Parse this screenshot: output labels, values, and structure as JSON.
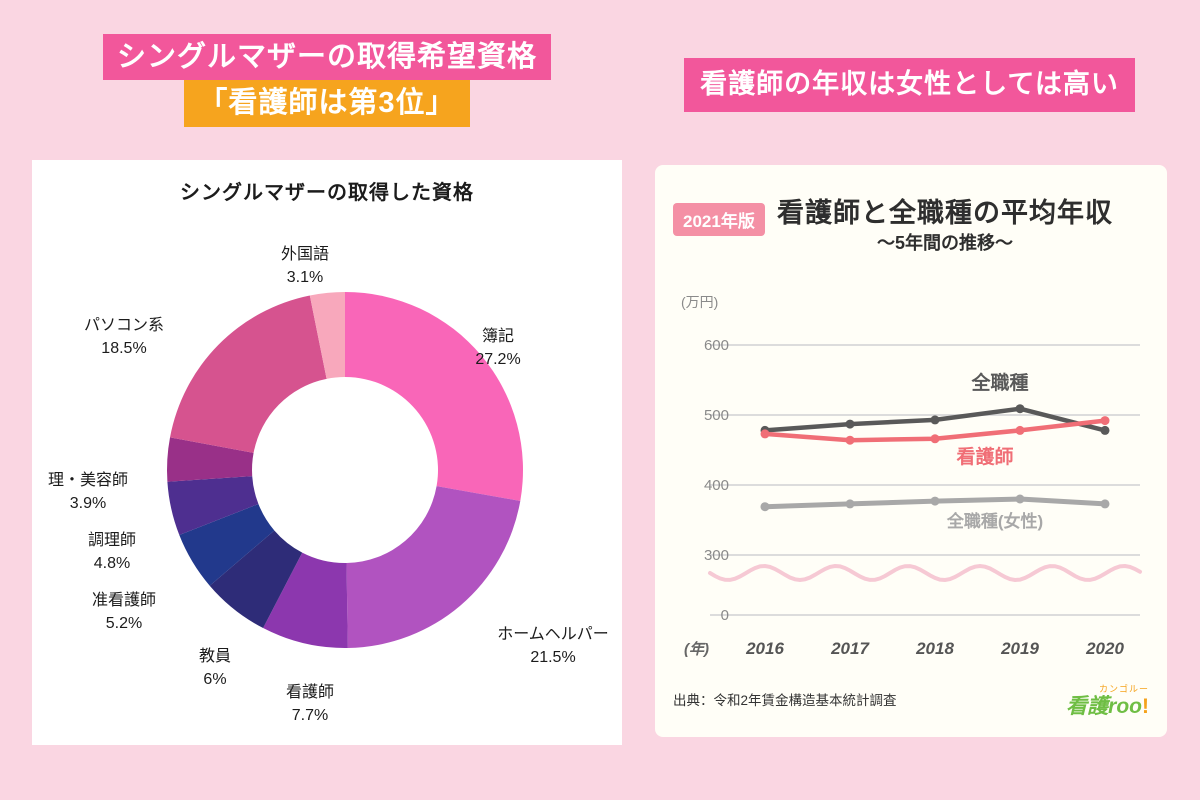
{
  "colors": {
    "page_bg": "#FAD6E2",
    "banner_pink": "#F2579B",
    "banner_orange": "#F6A41E",
    "card_left_bg": "#FFFFFF",
    "card_right_bg": "#FFFEF7",
    "badge_bg": "#F490A5",
    "grid": "#DCDCDC",
    "wave": "#F6C9D4"
  },
  "headlines": {
    "left_line1": "シングルマザーの取得希望資格",
    "left_line2": "「看護師は第3位」",
    "right": "看護師の年収は女性としては高い"
  },
  "donut": {
    "title": "シングルマザーの取得した資格"
  },
  "line_chart": {
    "badge": "2021年版",
    "title": "看護師と全職種の平均年収",
    "subtitle": "〜5年間の推移〜",
    "source": "出典：令和2年賃金構造基本統計調査",
    "logo_small": "カンゴルー",
    "logo_main": "看護roo",
    "logo_excl": "!"
  },
  "chart_data": [
    {
      "type": "pie",
      "donut": true,
      "title": "シングルマザーの取得した資格",
      "labels": [
        "簿記",
        "ホームヘルパー",
        "看護師",
        "教員",
        "准看護師",
        "調理師",
        "理・美容師",
        "パソコン系",
        "外国語"
      ],
      "values": [
        27.2,
        21.5,
        7.7,
        6,
        5.2,
        4.8,
        3.9,
        18.5,
        3.1
      ],
      "colors": [
        "#F966B8",
        "#B153C0",
        "#8C37AE",
        "#2E2C78",
        "#22398C",
        "#4E2F90",
        "#993088",
        "#D6538F",
        "#F8A8BC"
      ]
    },
    {
      "type": "line",
      "title": "看護師と全職種の平均年収",
      "subtitle": "〜5年間の推移〜",
      "ylabel": "(万円)",
      "xlabel": "(年)",
      "x": [
        2016,
        2017,
        2018,
        2019,
        2020
      ],
      "yticks": [
        0,
        300,
        400,
        500,
        600
      ],
      "ylim": [
        0,
        650
      ],
      "axis_break": true,
      "grid": true,
      "series": [
        {
          "name": "全職種",
          "color": "#595959",
          "values": [
            478,
            487,
            493,
            509,
            478
          ]
        },
        {
          "name": "看護師",
          "color": "#F06E76",
          "values": [
            473,
            464,
            466,
            478,
            492
          ]
        },
        {
          "name": "全職種(女性)",
          "color": "#A8A8A8",
          "values": [
            369,
            373,
            377,
            380,
            373
          ]
        }
      ]
    }
  ]
}
